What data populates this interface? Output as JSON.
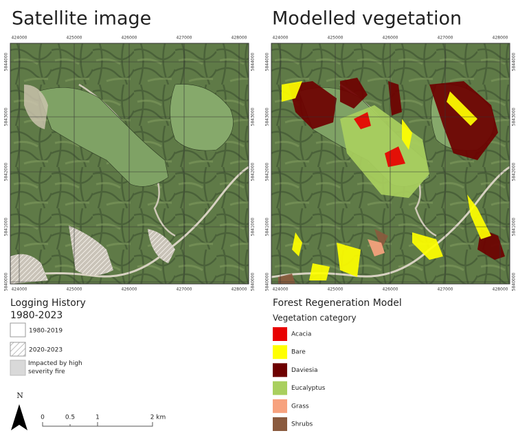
{
  "titles": {
    "left": "Satellite image",
    "right": "Modelled vegetation"
  },
  "map_ticks": {
    "x": [
      "424000",
      "425000",
      "426000",
      "427000",
      "428000"
    ],
    "y": [
      "5844000",
      "5843000",
      "5842000",
      "5841000",
      "5840000"
    ]
  },
  "logging_legend": {
    "title": "Logging History",
    "subtitle": "1980-2023",
    "items": [
      "1980-2019",
      "2020-2023",
      "Impacted by high severity fire"
    ]
  },
  "vegetation_legend": {
    "title": "Forest Regeneration Model",
    "subtitle": "Vegetation category",
    "items": [
      {
        "name": "Acacia",
        "color": "#e80000"
      },
      {
        "name": "Bare",
        "color": "#ffff00"
      },
      {
        "name": "Daviesia",
        "color": "#6e0000"
      },
      {
        "name": "Eucalyptus",
        "color": "#a9cf5e"
      },
      {
        "name": "Grass",
        "color": "#f7a27e"
      },
      {
        "name": "Shrubs",
        "color": "#8a5a3e"
      }
    ]
  },
  "scale": {
    "north": "N",
    "labels": [
      "0",
      "0.5",
      "1",
      "2 km"
    ]
  }
}
